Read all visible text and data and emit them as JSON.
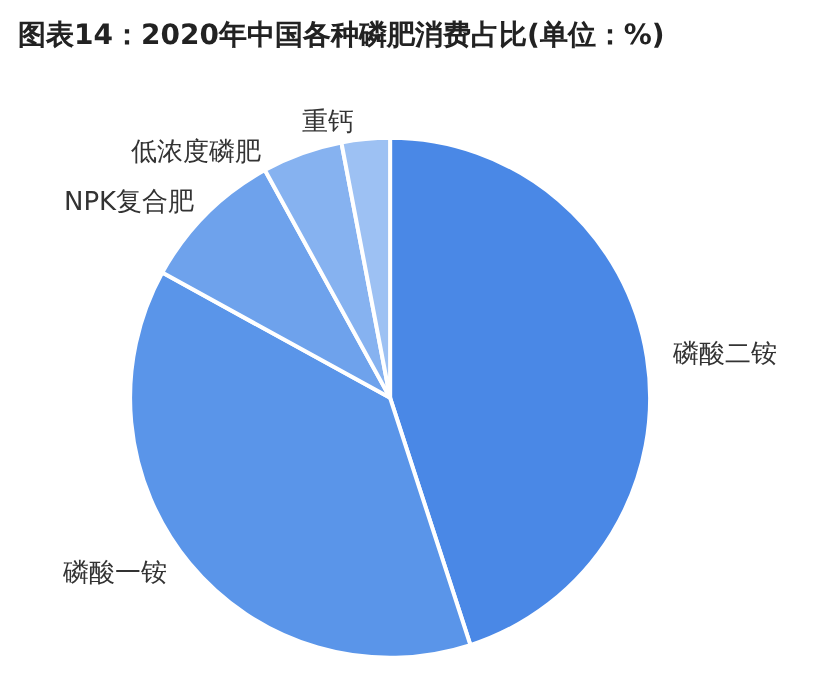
{
  "chart_data": {
    "type": "pie",
    "title": "图表14：2020年中国各种磷肥消费占比(单位：%)",
    "categories": [
      "磷酸二铵",
      "磷酸一铵",
      "NPK复合肥",
      "低浓度磷肥",
      "重钙"
    ],
    "values": [
      45,
      38,
      9,
      5,
      3
    ],
    "colors": [
      "#4a88e6",
      "#5a95e9",
      "#6ea2ec",
      "#86b2f0",
      "#9dc1f3"
    ],
    "legend": false
  }
}
